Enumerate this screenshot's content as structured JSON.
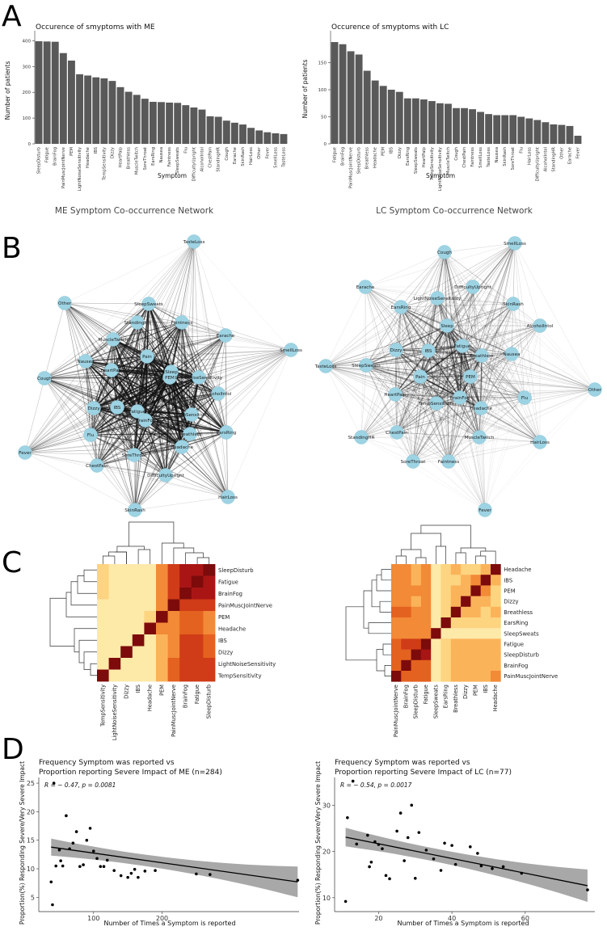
{
  "panel_labels": [
    "A",
    "B",
    "C",
    "D"
  ],
  "chart_data": [
    {
      "id": "a_me",
      "type": "bar",
      "title": "Occurence of smyptoms with ME",
      "xlabel": "Symptom",
      "ylabel": "Number of patients",
      "ylim": [
        0,
        420
      ],
      "yticks": [
        0,
        100,
        200,
        300,
        400
      ],
      "categories": [
        "SleepDisturb",
        "Fatigue",
        "BrainFog",
        "PainMuscJointNerve",
        "PEM",
        "LightNoiseSensitivity",
        "Headache",
        "IBS",
        "TempSensitivity",
        "Dizzy",
        "HeartPalp",
        "Breathless",
        "MuscleTwitch",
        "SoreThroat",
        "EarsRing",
        "Nausea",
        "Faintness",
        "SleepSweats",
        "Flu",
        "DifficultyUpright",
        "AlcoholIntol",
        "ChestPain",
        "StandingHR",
        "Cough",
        "Earache",
        "SkinRash",
        "HairLoss",
        "Other",
        "Fever",
        "SmellLoss",
        "TasteLoss"
      ],
      "values": [
        398,
        397,
        396,
        352,
        323,
        270,
        265,
        258,
        254,
        244,
        220,
        202,
        190,
        175,
        163,
        162,
        160,
        159,
        150,
        141,
        133,
        107,
        105,
        90,
        82,
        75,
        62,
        52,
        45,
        41,
        38
      ]
    },
    {
      "id": "a_lc",
      "type": "bar",
      "title": "Occurence of smyptoms with LC",
      "xlabel": "Symptom",
      "ylabel": "Number of patients",
      "ylim": [
        0,
        200
      ],
      "yticks": [
        0,
        50,
        100,
        150
      ],
      "categories": [
        "Fatigue",
        "BrainFog",
        "PainMuscJointNerve",
        "SleepDisturb",
        "Breathless",
        "Headache",
        "PEM",
        "IBS",
        "Dizzy",
        "EarsRing",
        "SleepSweats",
        "HeartPalp",
        "TempSensitivity",
        "LightNoiseSensitivity",
        "MuscleTwitch",
        "Cough",
        "ChestPain",
        "Faintness",
        "SmellLoss",
        "TasteLoss",
        "Nausea",
        "SkinRash",
        "SoreThroat",
        "Flu",
        "HairLoss",
        "DifficultyUpright",
        "AlcoholIntol",
        "StandingHR",
        "Other",
        "Earache",
        "Fever"
      ],
      "values": [
        188,
        184,
        171,
        165,
        135,
        117,
        107,
        100,
        96,
        84,
        84,
        82,
        79,
        75,
        74,
        66,
        66,
        64,
        59,
        55,
        53,
        53,
        53,
        50,
        47,
        44,
        40,
        36,
        35,
        33,
        15
      ]
    },
    {
      "id": "b_me",
      "type": "network",
      "title": "ME Symptom Co-occurrence Network",
      "nodes": [
        "TasteLoss",
        "Other",
        "SleepSweats",
        "StandingHR",
        "Faintness",
        "MuscleTwitch",
        "Earache",
        "SmellLoss",
        "Pain",
        "Nausea",
        "HeartPalp",
        "Sleep",
        "PEM",
        "LightNoiseSensitivity",
        "Cough",
        "AlcoholIntol",
        "Dizzy",
        "IBS",
        "Fatigue",
        "TempSensitivity",
        "BrainFog",
        "Flu",
        "Breathless",
        "EarsRing",
        "Headache",
        "Fever",
        "SoreThroat",
        "ChestPain",
        "DifficultyUpright",
        "HairLoss",
        "SkinRash"
      ]
    },
    {
      "id": "b_lc",
      "type": "network",
      "title": "LC Symptom Co-occurrence Network",
      "nodes": [
        "Cough",
        "SmellLoss",
        "Earache",
        "DifficultyUpright",
        "LightNoiseSensitivity",
        "EarsRing",
        "SkinRash",
        "Sleep",
        "AlcoholIntol",
        "Fatigue",
        "Dizzy",
        "IBS",
        "Breathless",
        "Nausea",
        "TasteLoss",
        "SleepSweats",
        "Pain",
        "PEM",
        "Other",
        "HeartPalp",
        "BrainFog",
        "Flu",
        "TempSensitivity",
        "Headache",
        "ChestPain",
        "StandingHR",
        "MuscleTwitch",
        "HairLoss",
        "SoreThroat",
        "Faintness",
        "Fever"
      ]
    },
    {
      "id": "c_me",
      "type": "heatmap",
      "labels": [
        "TempSensitivity",
        "LightNoiseSensitivity",
        "Dizzy",
        "IBS",
        "Headache",
        "PEM",
        "PainMuscJointNerve",
        "BrainFog",
        "Fatigue",
        "SleepDisturb"
      ],
      "row_labels_top_to_bottom": [
        "SleepDisturb",
        "Fatigue",
        "BrainFog",
        "PainMuscJointNerve",
        "PEM",
        "Headache",
        "IBS",
        "Dizzy",
        "LightNoiseSensitivity",
        "TempSensitivity"
      ]
    },
    {
      "id": "c_lc",
      "type": "heatmap",
      "labels": [
        "PainMuscJointNerve",
        "BrainFog",
        "SleepDisturb",
        "Fatigue",
        "SleepSweats",
        "EarsRing",
        "Breathless",
        "Dizzy",
        "PEM",
        "IBS",
        "Headache"
      ],
      "row_labels_top_to_bottom": [
        "Headache",
        "IBS",
        "PEM",
        "Dizzy",
        "Breathless",
        "EarsRing",
        "SleepSweats",
        "Fatigue",
        "SleepDisturb",
        "BrainFog",
        "PainMuscJointNerve"
      ]
    },
    {
      "id": "d_me",
      "type": "scatter",
      "title": "Frequency Symptom was reported vs\nProportion reporting Severe Impact of ME (n=284)",
      "xlabel": "Number of Times a Symptom is reported",
      "ylabel": "Proportion(%) Responding Severe/Very Severe Impact",
      "annotation": "R = − 0.47, p = 0.0081",
      "xlim": [
        20,
        400
      ],
      "ylim": [
        2.5,
        26
      ],
      "xticks": [
        100,
        200
      ],
      "yticks": [
        5,
        10,
        15,
        20,
        25
      ],
      "fit": {
        "x": [
          38,
          398
        ],
        "y": [
          13.8,
          7.7
        ]
      },
      "band_half_width": {
        "ends": 2.7,
        "mid": 1.0
      },
      "x": [
        38,
        40,
        42,
        45,
        50,
        52,
        55,
        60,
        65,
        70,
        75,
        80,
        85,
        90,
        95,
        100,
        105,
        110,
        115,
        120,
        130,
        140,
        150,
        155,
        160,
        165,
        175,
        190,
        250,
        270,
        398
      ],
      "y": [
        7.7,
        3.7,
        25,
        10.5,
        13.3,
        11.4,
        10.5,
        19.3,
        13.5,
        14.5,
        16.5,
        10.4,
        10.7,
        15,
        17.1,
        13.1,
        11.8,
        10.4,
        10.4,
        11.5,
        9.7,
        8.8,
        8.5,
        9.2,
        9.9,
        8.5,
        9.6,
        9.7,
        9.1,
        9.0,
        8.0
      ]
    },
    {
      "id": "d_lc",
      "type": "scatter",
      "title": "Frequency Symptom was reported vs\nProportion reporting Severe Impact of LC (n=77)",
      "xlabel": "Number of Times a Symptom is reported",
      "ylabel": "Proportion(%) Responding Severe/Very Severe Impact",
      "annotation": "R = − 0.54, p = 0.0017",
      "xlim": [
        8,
        79
      ],
      "ylim": [
        7,
        36
      ],
      "xticks": [
        20,
        40,
        60
      ],
      "yticks": [
        10,
        20,
        30
      ],
      "fit": {
        "x": [
          11,
          77
        ],
        "y": [
          23.1,
          12.6
        ]
      },
      "band_half_width": {
        "ends": 3.5,
        "mid": 1.4
      },
      "x": [
        11,
        11.5,
        13,
        14,
        17,
        17.5,
        18,
        19,
        20,
        21,
        22,
        23,
        25,
        26,
        27,
        28,
        29,
        30,
        31,
        33,
        35,
        37,
        38,
        40,
        41,
        45,
        47,
        48,
        51,
        54,
        59,
        77
      ],
      "y": [
        9.2,
        27.3,
        35.2,
        21.6,
        23.5,
        16.7,
        17.7,
        22.1,
        21.5,
        20.6,
        14.8,
        14.1,
        24.4,
        28.3,
        18.0,
        23,
        30,
        14.2,
        24.1,
        20.3,
        18.4,
        15.9,
        21.8,
        21.3,
        17.2,
        21.0,
        19.6,
        16.9,
        16.3,
        16.7,
        15.3,
        11.7
      ]
    }
  ]
}
